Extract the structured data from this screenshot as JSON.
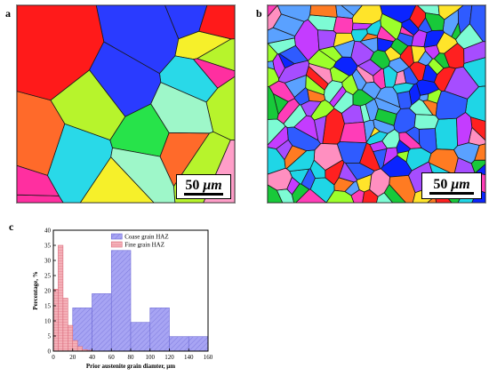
{
  "panels": {
    "a": {
      "letter": "a",
      "scale_value": "50",
      "scale_unit": "μm",
      "colors": [
        "#ff1a1a",
        "#27e34a",
        "#3f7bff",
        "#ff2fa0",
        "#8a3cff",
        "#f6f02a",
        "#29d9e8",
        "#ff6a2a",
        "#b7f42c",
        "#2a3bff",
        "#ff9ec8",
        "#9ef7c9"
      ]
    },
    "b": {
      "letter": "b",
      "scale_value": "50",
      "scale_unit": "μm",
      "colors": [
        "#ff2020",
        "#18c93a",
        "#2f5bff",
        "#ff3db8",
        "#a64dff",
        "#ffe42a",
        "#1fd6e6",
        "#ff7b22",
        "#9cff2b",
        "#0b24ff",
        "#ff8fc0",
        "#7dfbd4",
        "#c43cff",
        "#5aa1ff"
      ]
    },
    "c": {
      "letter": "c"
    }
  },
  "chart_data": {
    "type": "bar",
    "xlabel": "Prior austenite grain diamter, μm",
    "ylabel": "Percentage, %",
    "xlim": [
      0,
      160
    ],
    "ylim": [
      0,
      40
    ],
    "xticks": [
      0,
      20,
      40,
      60,
      80,
      100,
      120,
      140,
      160
    ],
    "yticks": [
      0,
      5,
      10,
      15,
      20,
      25,
      30,
      35,
      40
    ],
    "legend_position": "top-right",
    "series": [
      {
        "name": "Coase grain HAZ",
        "color": "#9f9cf0",
        "edges": [
          0,
          20,
          40,
          60,
          80,
          100,
          120,
          140,
          160
        ],
        "values": [
          5,
          14.3,
          19,
          33.3,
          9.5,
          14.3,
          4.8,
          4.8
        ]
      },
      {
        "name": "Fine grain HAZ",
        "color": "#f2a6ae",
        "edges": [
          0,
          5,
          10,
          15,
          20,
          25,
          30,
          35,
          40
        ],
        "values": [
          20.5,
          35,
          17.5,
          8.5,
          3.5,
          1.5,
          0.5,
          0.3
        ]
      }
    ]
  }
}
